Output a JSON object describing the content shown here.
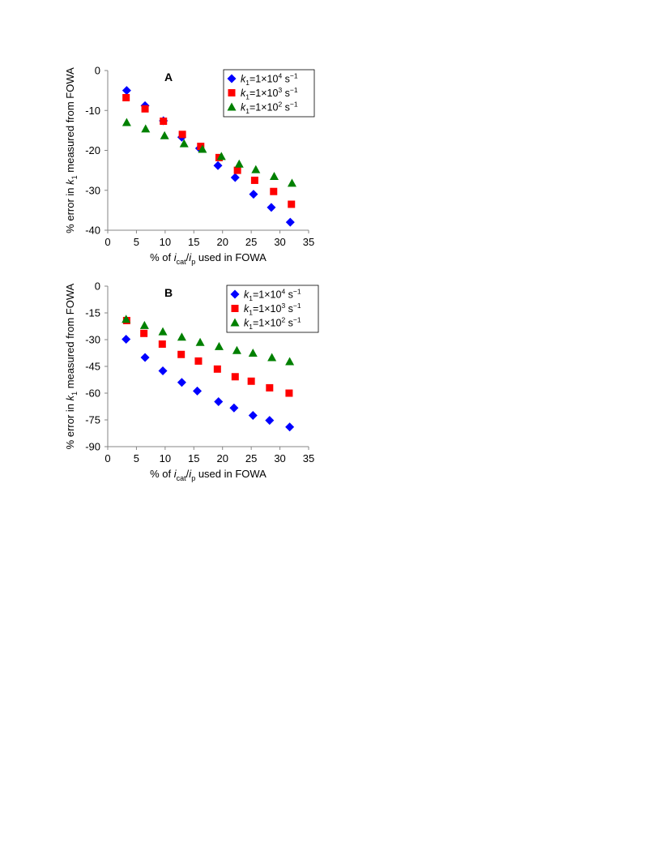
{
  "chart_data": [
    {
      "type": "scatter",
      "panel_label": "A",
      "title": "",
      "xlabel": {
        "prefix": "% of ",
        "num": "i",
        "num_sub": "cat",
        "slash": "/",
        "den": "i",
        "den_sub": "p",
        "suffix": " used in FOWA"
      },
      "ylabel": {
        "prefix": "% error in ",
        "var": "k",
        "var_sub": "1",
        "suffix": " measured from FOWA"
      },
      "xlim": [
        0,
        35
      ],
      "ylim": [
        -40,
        0
      ],
      "xticks": [
        0,
        5,
        10,
        15,
        20,
        25,
        30,
        35
      ],
      "yticks": [
        0,
        -10,
        -20,
        -30,
        -40
      ],
      "grid": false,
      "legend_position": "top-right",
      "series": [
        {
          "name": "k1=1×10^4 s^-1",
          "legend": {
            "var": "k",
            "sub": "1",
            "base": "=1×10",
            "exp": "4",
            "unit": " s",
            "unit_exp": "−1"
          },
          "marker": "diamond",
          "color": "#0000FF",
          "x": [
            3.3,
            6.5,
            9.7,
            12.9,
            16.0,
            19.2,
            22.2,
            25.4,
            28.5,
            31.8
          ],
          "y": [
            -5.0,
            -8.8,
            -12.6,
            -16.7,
            -19.5,
            -23.8,
            -26.8,
            -31.0,
            -34.3,
            -38.0
          ]
        },
        {
          "name": "k1=1×10^3 s^-1",
          "legend": {
            "var": "k",
            "sub": "1",
            "base": "=1×10",
            "exp": "3",
            "unit": " s",
            "unit_exp": "−1"
          },
          "marker": "square",
          "color": "#FF0000",
          "x": [
            3.2,
            6.5,
            9.7,
            13.0,
            16.2,
            19.4,
            22.6,
            25.6,
            28.9,
            32.0
          ],
          "y": [
            -6.8,
            -9.6,
            -12.7,
            -16.0,
            -19.0,
            -21.8,
            -25.0,
            -27.5,
            -30.3,
            -33.5
          ]
        },
        {
          "name": "k1=1×10^2 s^-1",
          "legend": {
            "var": "k",
            "sub": "1",
            "base": "=1×10",
            "exp": "2",
            "unit": " s",
            "unit_exp": "−1"
          },
          "marker": "triangle",
          "color": "#008000",
          "x": [
            3.3,
            6.6,
            9.9,
            13.3,
            16.5,
            19.8,
            22.9,
            25.8,
            29.0,
            32.1
          ],
          "y": [
            -13.0,
            -14.6,
            -16.3,
            -18.3,
            -19.7,
            -21.5,
            -23.4,
            -24.8,
            -26.5,
            -28.2
          ]
        }
      ]
    },
    {
      "type": "scatter",
      "panel_label": "B",
      "title": "",
      "xlabel": {
        "prefix": "% of ",
        "num": "i",
        "num_sub": "cat",
        "slash": "/",
        "den": "i",
        "den_sub": "p",
        "suffix": " used in FOWA"
      },
      "ylabel": {
        "prefix": "% error in ",
        "var": "k",
        "var_sub": "1",
        "suffix": " measured from FOWA"
      },
      "xlim": [
        0,
        35
      ],
      "ylim": [
        -90,
        0
      ],
      "xticks": [
        0,
        5,
        10,
        15,
        20,
        25,
        30,
        35
      ],
      "yticks": [
        0,
        -15,
        -30,
        -45,
        -60,
        -75,
        -90
      ],
      "grid": false,
      "legend_position": "top-right",
      "series": [
        {
          "name": "k1=1×10^4 s^-1",
          "legend": {
            "var": "k",
            "sub": "1",
            "base": "=1×10",
            "exp": "4",
            "unit": " s",
            "unit_exp": "−1"
          },
          "marker": "diamond",
          "color": "#0000FF",
          "x": [
            3.2,
            6.5,
            9.6,
            12.9,
            15.6,
            19.3,
            22.0,
            25.3,
            28.2,
            31.7
          ],
          "y": [
            -29.8,
            -40.0,
            -47.5,
            -54.0,
            -58.8,
            -64.8,
            -68.3,
            -72.5,
            -75.3,
            -79.0
          ]
        },
        {
          "name": "k1=1×10^3 s^-1",
          "legend": {
            "var": "k",
            "sub": "1",
            "base": "=1×10",
            "exp": "3",
            "unit": " s",
            "unit_exp": "−1"
          },
          "marker": "square",
          "color": "#FF0000",
          "x": [
            3.3,
            6.3,
            9.5,
            12.8,
            15.8,
            19.1,
            22.2,
            25.0,
            28.2,
            31.6
          ],
          "y": [
            -19.3,
            -26.5,
            -32.5,
            -38.3,
            -42.0,
            -46.5,
            -50.8,
            -53.3,
            -57.0,
            -60.0
          ]
        },
        {
          "name": "k1=1×10^2 s^-1",
          "legend": {
            "var": "k",
            "sub": "1",
            "base": "=1×10",
            "exp": "2",
            "unit": " s",
            "unit_exp": "−1"
          },
          "marker": "triangle",
          "color": "#008000",
          "x": [
            3.2,
            6.4,
            9.6,
            12.9,
            16.1,
            19.4,
            22.5,
            25.3,
            28.6,
            31.7
          ],
          "y": [
            -18.5,
            -22.0,
            -25.5,
            -28.5,
            -31.5,
            -33.8,
            -36.0,
            -37.5,
            -40.0,
            -42.3
          ]
        }
      ]
    }
  ]
}
